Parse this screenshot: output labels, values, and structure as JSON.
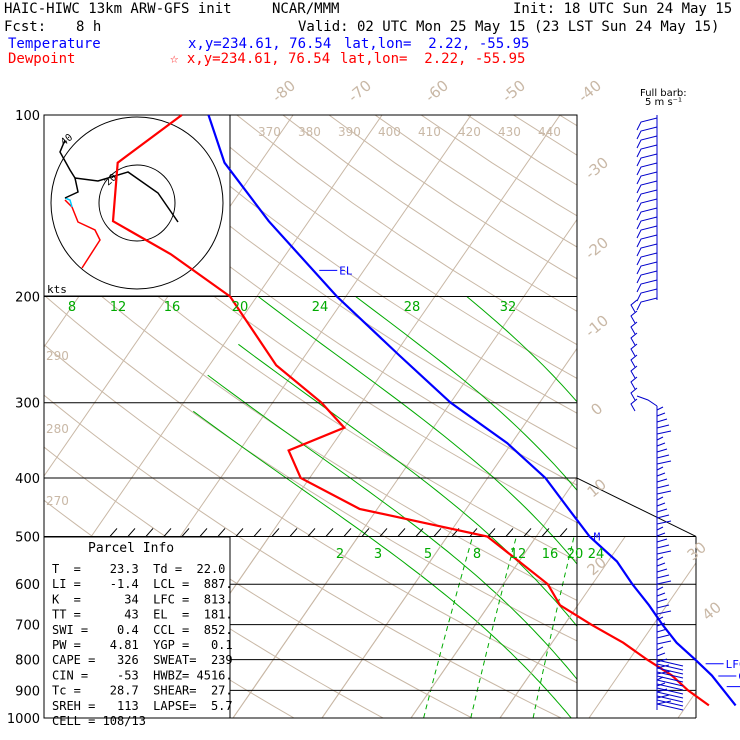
{
  "header": {
    "model": "HAIC-HIWC 13km ARW-GFS init",
    "center": "NCAR/MMM",
    "init": "Init: 18 UTC Sun 24 May 15",
    "fcst_label": "Fcst:",
    "fcst_value": "8 h",
    "valid": "Valid: 02 UTC Mon 25 May 15 (23 LST Sun 24 May 15)",
    "temp_label": "Temperature",
    "temp_xy": "x,y=234.61, 76.54",
    "temp_latlon": "lat,lon=  2.22, -55.95",
    "dew_label": "Dewpoint",
    "dew_xy": "☆ x,y=234.61, 76.54",
    "dew_latlon": "lat,lon=  2.22, -55.95"
  },
  "colors": {
    "temperature": "#0000ff",
    "dewpoint": "#ff0000",
    "isotherm": "#c9b8a6",
    "mixing": "#00aa00",
    "black": "#000000"
  },
  "chart_data": {
    "type": "line",
    "y_axis": "pressure (hPa, log scale)",
    "pressure_ticks": [
      100,
      200,
      300,
      400,
      500,
      600,
      700,
      800,
      900,
      1000
    ],
    "isotherm_labels": [
      "-80",
      "-70",
      "-60",
      "-50",
      "-40",
      "-30",
      "-20",
      "-10",
      "0",
      "10",
      "20",
      "30",
      "40"
    ],
    "theta_labels_top": [
      "370",
      "380",
      "390",
      "400",
      "410",
      "420",
      "430",
      "440"
    ],
    "theta_labels_left": [
      "290",
      "280",
      "270"
    ],
    "mixing_ratio_labels_upper": [
      "8",
      "12",
      "16",
      "20",
      "24",
      "28",
      "32"
    ],
    "mixing_ratio_labels_lower": [
      "2",
      "3",
      "5",
      "8",
      "12",
      "16",
      "20",
      "24"
    ],
    "series": [
      {
        "name": "Temperature",
        "color": "#0000ff",
        "points": [
          [
            953,
            25.5
          ],
          [
            900,
            23.0
          ],
          [
            850,
            20.5
          ],
          [
            800,
            17.4
          ],
          [
            750,
            14.0
          ],
          [
            700,
            11.0
          ],
          [
            650,
            8.0
          ],
          [
            600,
            4.5
          ],
          [
            550,
            1.0
          ],
          [
            500,
            -4.0
          ],
          [
            450,
            -8.5
          ],
          [
            400,
            -13.5
          ],
          [
            350,
            -20.5
          ],
          [
            300,
            -30.0
          ],
          [
            250,
            -39.5
          ],
          [
            200,
            -51.0
          ],
          [
            150,
            -64.5
          ],
          [
            120,
            -74.0
          ],
          [
            100,
            -79.5
          ]
        ]
      },
      {
        "name": "Dewpoint",
        "color": "#ff0000",
        "points": [
          [
            953,
            22.5
          ],
          [
            900,
            19.0
          ],
          [
            850,
            16.0
          ],
          [
            800,
            12.0
          ],
          [
            750,
            8.0
          ],
          [
            700,
            3.0
          ],
          [
            650,
            -2.0
          ],
          [
            600,
            -5.0
          ],
          [
            550,
            -10.0
          ],
          [
            500,
            -15.5
          ],
          [
            450,
            -32.0
          ],
          [
            400,
            -41.0
          ],
          [
            360,
            -44.5
          ],
          [
            330,
            -40.0
          ],
          [
            300,
            -44.5
          ],
          [
            260,
            -52.5
          ],
          [
            200,
            -63.0
          ],
          [
            170,
            -73.0
          ],
          [
            150,
            -82.0
          ],
          [
            120,
            -86.0
          ],
          [
            100,
            -82.5
          ]
        ]
      }
    ],
    "annotations": [
      {
        "text": "EL",
        "p": 181,
        "color": "#0000ff"
      },
      {
        "text": "M",
        "p": 500,
        "color": "#0000ff"
      },
      {
        "text": "LFC",
        "p": 813,
        "color": "#0000ff"
      },
      {
        "text": "CCL",
        "p": 852,
        "color": "#0000ff"
      },
      {
        "text": "LCL",
        "p": 887,
        "color": "#0000ff"
      }
    ],
    "wind_label": "Full barb:",
    "wind_unit": "5 m s⁻¹",
    "hodograph_label": "kts",
    "hodograph_rings": [
      "20",
      "40"
    ],
    "parcel_info": {
      "title": "Parcel Info",
      "rows": [
        "T  =    23.3  Td =  22.0",
        "LI =    -1.4  LCL =  887.",
        "K  =      34  LFC =  813.",
        "TT =      43  EL  =  181.",
        "SWI =    0.4  CCL =  852.",
        "PW =    4.81  YGP =   0.1",
        "CAPE =   326  SWEAT=  239",
        "CIN =    -53  HWBZ= 4516.",
        "Tc =    28.7  SHEAR=  27.",
        "SREH =   113  LAPSE=  5.7",
        "CELL = 108/13"
      ]
    }
  }
}
